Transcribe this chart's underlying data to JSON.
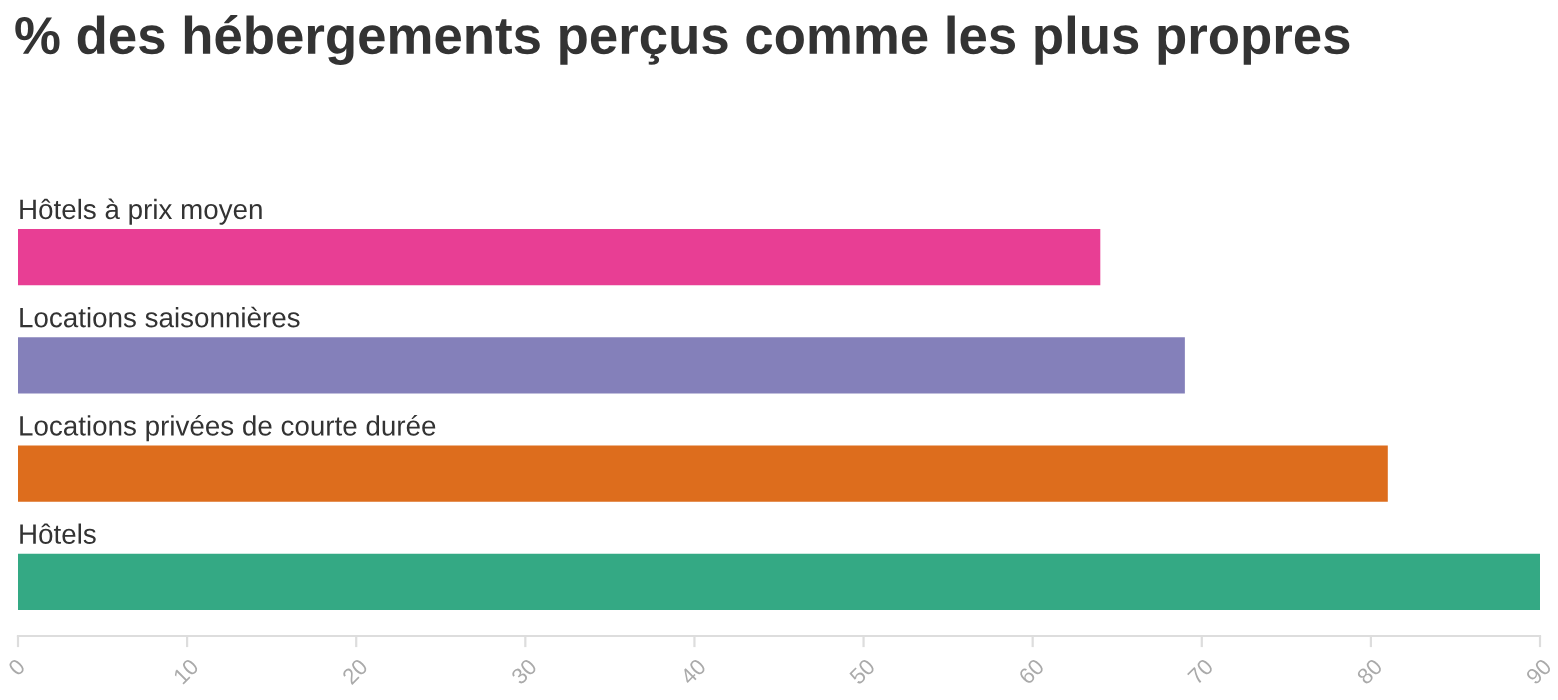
{
  "chart_data": {
    "type": "bar",
    "orientation": "horizontal",
    "title": "% des hébergements perçus comme les plus propres",
    "categories": [
      "Hôtels à prix moyen",
      "Locations saisonnières",
      "Locations privées de courte durée",
      "Hôtels"
    ],
    "values": [
      64,
      69,
      81,
      90
    ],
    "colors": [
      "#e83e94",
      "#8480ba",
      "#dd6d1d",
      "#34a984"
    ],
    "xlim": [
      0,
      90
    ],
    "xticks": [
      0,
      10,
      20,
      30,
      40,
      50,
      60,
      70,
      80,
      90
    ],
    "grid": false
  }
}
